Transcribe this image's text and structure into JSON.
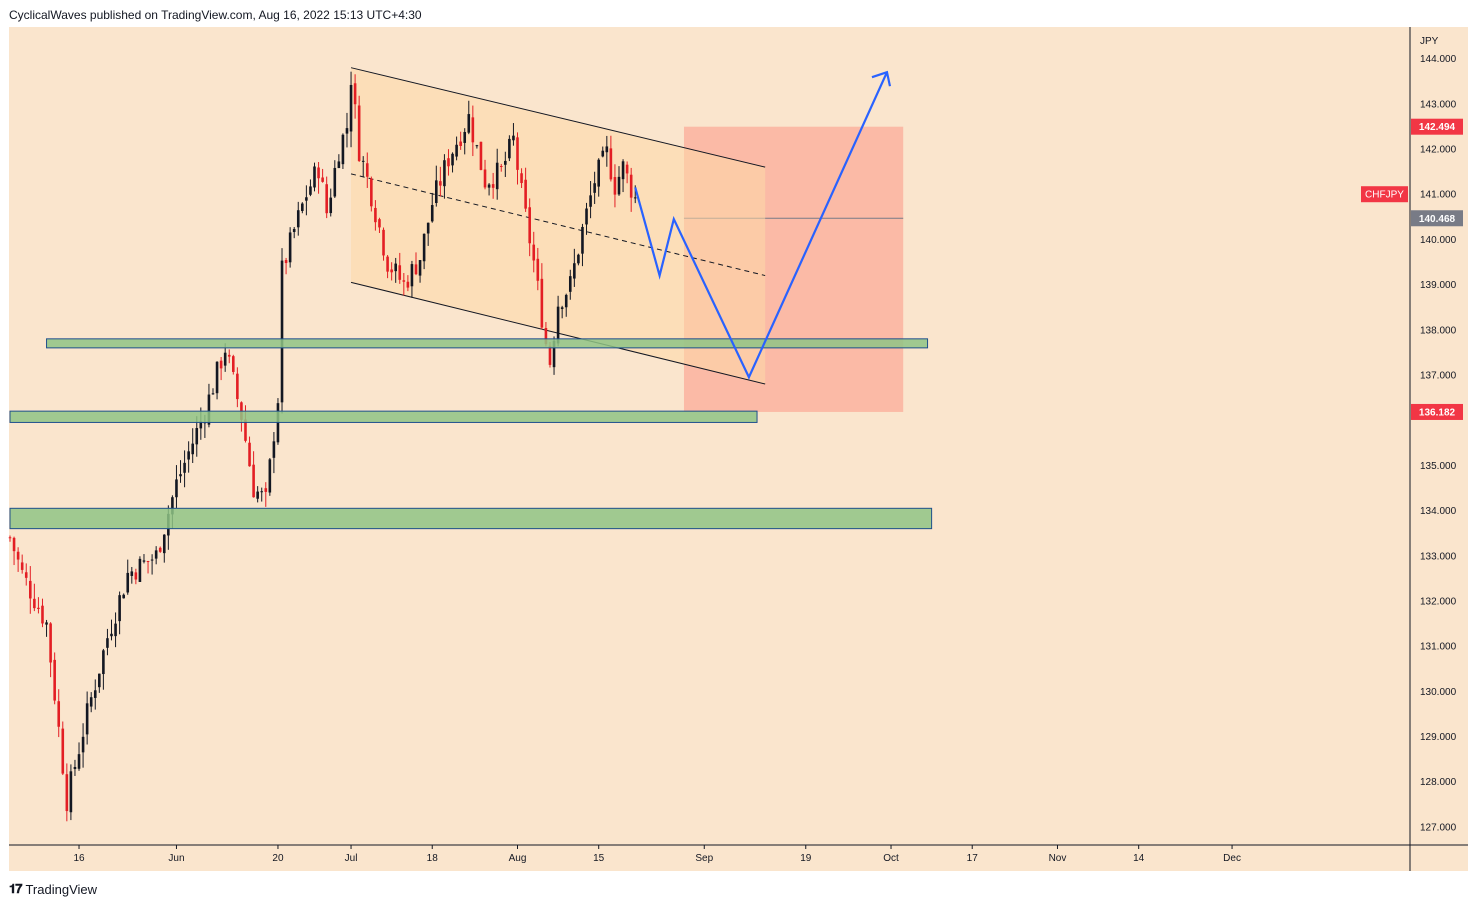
{
  "header": {
    "published_text": "CyclicalWaves published on TradingView.com, Aug 16, 2022 15:13 UTC+4:30"
  },
  "footer": {
    "brand": "TradingView",
    "logo_icon": "tradingview-logo-icon"
  },
  "colors": {
    "background": "#fae5cd",
    "candle_up": "#131722",
    "candle_down": "#e31e24",
    "channel_fill": "#fdd9a8",
    "target_zone": "#fb9f8e",
    "support_zone": "#8fc485",
    "projection": "#2962ff",
    "label_red": "#f23645",
    "label_gray": "#787b86"
  },
  "chart_data": {
    "type": "candlestick",
    "symbol": "CHFJPY",
    "axis_title": "JPY",
    "ylim": [
      126.6,
      144.7
    ],
    "y_ticks": [
      "144.000",
      "143.000",
      "142.000",
      "141.000",
      "140.000",
      "139.000",
      "138.000",
      "137.000",
      "135.000",
      "134.000",
      "133.000",
      "132.000",
      "131.000",
      "130.000",
      "129.000",
      "128.000",
      "127.000"
    ],
    "y_tick_values": [
      144,
      143,
      142,
      141,
      140,
      139,
      138,
      137,
      135,
      134,
      133,
      132,
      131,
      130,
      129,
      128,
      127
    ],
    "x_tick_labels": [
      "16",
      "Jun",
      "20",
      "Jul",
      "18",
      "Aug",
      "15",
      "Sep",
      "19",
      "Oct",
      "17",
      "Nov",
      "14",
      "Dec"
    ],
    "x_tick_bar": [
      17,
      41,
      66,
      84,
      104,
      125,
      145,
      171,
      196,
      217,
      237,
      258,
      278,
      301
    ],
    "price_labels": [
      {
        "text": "142.494",
        "value": 142.494,
        "style": "red"
      },
      {
        "text": "CHFJPY",
        "value": 141.0,
        "style": "red"
      },
      {
        "text": "140.468",
        "value": 140.468,
        "style": "gray"
      },
      {
        "text": "136.182",
        "value": 136.182,
        "style": "red"
      }
    ],
    "waypoints": [
      {
        "bar": 0,
        "price": 133.4
      },
      {
        "bar": 3,
        "price": 132.6
      },
      {
        "bar": 9,
        "price": 131.5
      },
      {
        "bar": 14,
        "price": 127.6
      },
      {
        "bar": 19,
        "price": 129.5
      },
      {
        "bar": 24,
        "price": 131.2
      },
      {
        "bar": 29,
        "price": 132.6
      },
      {
        "bar": 36,
        "price": 133.0
      },
      {
        "bar": 41,
        "price": 134.6
      },
      {
        "bar": 48,
        "price": 136.2
      },
      {
        "bar": 53,
        "price": 137.6
      },
      {
        "bar": 57,
        "price": 136.1
      },
      {
        "bar": 60,
        "price": 134.5
      },
      {
        "bar": 63,
        "price": 134.2
      },
      {
        "bar": 66,
        "price": 136.5
      },
      {
        "bar": 67,
        "price": 139.3
      },
      {
        "bar": 70,
        "price": 140.2
      },
      {
        "bar": 73,
        "price": 141.0
      },
      {
        "bar": 76,
        "price": 141.6
      },
      {
        "bar": 78,
        "price": 140.6
      },
      {
        "bar": 81,
        "price": 142.0
      },
      {
        "bar": 83,
        "price": 142.5
      },
      {
        "bar": 84,
        "price": 143.6
      },
      {
        "bar": 86,
        "price": 142.0
      },
      {
        "bar": 89,
        "price": 141.0
      },
      {
        "bar": 93,
        "price": 139.5
      },
      {
        "bar": 97,
        "price": 139.0
      },
      {
        "bar": 101,
        "price": 139.6
      },
      {
        "bar": 104,
        "price": 140.8
      },
      {
        "bar": 108,
        "price": 141.8
      },
      {
        "bar": 113,
        "price": 142.7
      },
      {
        "bar": 117,
        "price": 141.3
      },
      {
        "bar": 121,
        "price": 141.5
      },
      {
        "bar": 124,
        "price": 142.2
      },
      {
        "bar": 126,
        "price": 141.0
      },
      {
        "bar": 129,
        "price": 139.5
      },
      {
        "bar": 132,
        "price": 137.7
      },
      {
        "bar": 133,
        "price": 137.3
      },
      {
        "bar": 135,
        "price": 138.6
      },
      {
        "bar": 138,
        "price": 139.0
      },
      {
        "bar": 141,
        "price": 140.2
      },
      {
        "bar": 144,
        "price": 141.3
      },
      {
        "bar": 147,
        "price": 141.9
      },
      {
        "bar": 149,
        "price": 141.2
      },
      {
        "bar": 151,
        "price": 141.6
      },
      {
        "bar": 154,
        "price": 140.9
      }
    ],
    "channel": {
      "upper": [
        {
          "bar": 84,
          "price": 143.8
        },
        {
          "bar": 186,
          "price": 141.6
        }
      ],
      "lower": [
        {
          "bar": 84,
          "price": 139.05
        },
        {
          "bar": 186,
          "price": 136.8
        }
      ],
      "mid": [
        {
          "bar": 84,
          "price": 141.45
        },
        {
          "bar": 186,
          "price": 139.2
        }
      ]
    },
    "zones": [
      {
        "type": "target",
        "bar_from": 166,
        "bar_to": 220,
        "top": 142.494,
        "bottom": 136.182,
        "level": 140.468
      },
      {
        "type": "support",
        "bar_from": 9,
        "bar_to": 226,
        "top": 137.8,
        "bottom": 137.6
      },
      {
        "type": "support",
        "bar_from": 0,
        "bar_to": 184,
        "top": 136.2,
        "bottom": 135.95
      },
      {
        "type": "support",
        "bar_from": 0,
        "bar_to": 227,
        "top": 134.05,
        "bottom": 133.6
      }
    ],
    "projection": [
      {
        "bar": 154,
        "price": 141.15
      },
      {
        "bar": 160,
        "price": 139.2
      },
      {
        "bar": 163.5,
        "price": 140.45
      },
      {
        "bar": 182,
        "price": 136.95
      },
      {
        "bar": 216,
        "price": 143.7
      }
    ]
  }
}
